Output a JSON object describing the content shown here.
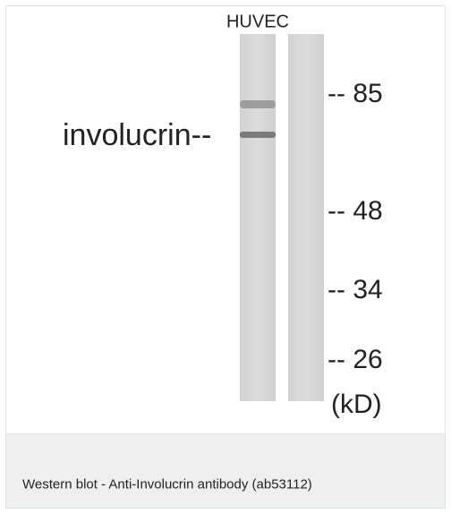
{
  "blot": {
    "lane_label": "HUVEC",
    "band_label": "involucrin--",
    "markers": [
      "-- 85",
      "-- 48",
      "-- 34",
      "-- 26"
    ],
    "unit": "(kD)"
  },
  "caption": "Western blot - Anti-Involucrin antibody (ab53112)"
}
